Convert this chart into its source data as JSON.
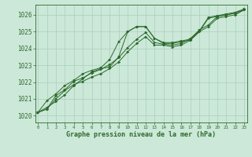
{
  "xlabel": "Graphe pression niveau de la mer (hPa)",
  "bg_color": "#cce8d8",
  "line_color": "#2d6a2d",
  "grid_color": "#aacfbc",
  "ylim": [
    1019.6,
    1026.6
  ],
  "xlim": [
    -0.3,
    23.3
  ],
  "yticks": [
    1020,
    1021,
    1022,
    1023,
    1024,
    1025,
    1026
  ],
  "xticks": [
    0,
    1,
    2,
    3,
    4,
    5,
    6,
    7,
    8,
    9,
    10,
    11,
    12,
    13,
    14,
    15,
    16,
    17,
    18,
    19,
    20,
    21,
    22,
    23
  ],
  "xtick_labels": [
    "0",
    "1",
    "2",
    "3",
    "4",
    "5",
    "6",
    "7",
    "8",
    "9",
    "10",
    "11",
    "12",
    "13",
    "14",
    "15",
    "16",
    "17",
    "18",
    "19",
    "20",
    "21",
    "22",
    "23"
  ],
  "series": [
    [
      1020.2,
      1020.5,
      1020.85,
      1021.25,
      1021.8,
      1022.2,
      1022.6,
      1022.8,
      1022.9,
      1023.5,
      1025.0,
      1025.3,
      1025.3,
      1024.6,
      1024.3,
      1024.3,
      1024.4,
      1024.5,
      1025.0,
      1025.8,
      1025.9,
      1026.0,
      1026.1,
      1026.3
    ],
    [
      1020.2,
      1020.4,
      1021.0,
      1021.5,
      1021.85,
      1022.05,
      1022.3,
      1022.5,
      1022.8,
      1023.2,
      1023.8,
      1024.3,
      1024.7,
      1024.2,
      1024.2,
      1024.1,
      1024.2,
      1024.5,
      1025.0,
      1025.3,
      1025.8,
      1025.9,
      1026.0,
      1026.3
    ],
    [
      1020.2,
      1020.4,
      1021.2,
      1021.55,
      1022.05,
      1022.25,
      1022.55,
      1022.75,
      1023.05,
      1023.45,
      1024.05,
      1024.55,
      1024.95,
      1024.35,
      1024.25,
      1024.2,
      1024.3,
      1024.6,
      1025.1,
      1025.4,
      1025.9,
      1026.0,
      1026.1,
      1026.3
    ],
    [
      1020.2,
      1020.9,
      1021.3,
      1021.8,
      1022.1,
      1022.5,
      1022.7,
      1022.85,
      1023.35,
      1024.4,
      1025.0,
      1025.3,
      1025.3,
      1024.6,
      1024.35,
      1024.35,
      1024.45,
      1024.55,
      1025.05,
      1025.85,
      1025.95,
      1026.05,
      1026.15,
      1026.35
    ]
  ]
}
